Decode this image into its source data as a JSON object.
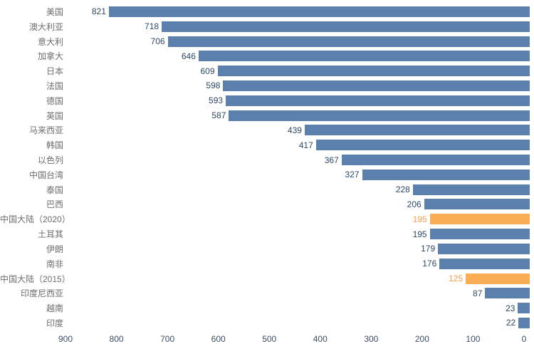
{
  "chart_data": {
    "type": "bar",
    "orientation": "horizontal",
    "title": "",
    "xlabel": "",
    "ylabel": "",
    "categories": [
      "美国",
      "澳大利亚",
      "意大利",
      "加拿大",
      "日本",
      "法国",
      "德国",
      "英国",
      "马来西亚",
      "韩国",
      "以色列",
      "中国台湾",
      "泰国",
      "巴西",
      "中国大陆（2020）",
      "土耳其",
      "伊朗",
      "南非",
      "中国大陆（2015）",
      "印度尼西亚",
      "越南",
      "印度"
    ],
    "values": [
      821,
      718,
      706,
      646,
      609,
      598,
      593,
      587,
      439,
      417,
      367,
      327,
      228,
      206,
      195,
      195,
      179,
      176,
      125,
      87,
      23,
      22
    ],
    "highlight_indices": [
      14,
      18
    ],
    "x_axis": {
      "min": 0,
      "max": 900,
      "reversed": true,
      "ticks": [
        900,
        800,
        700,
        600,
        500,
        400,
        300,
        200,
        100,
        0
      ]
    },
    "legend": null,
    "grid": false,
    "colors": {
      "bar": "#5b80ad",
      "highlight_bar": "#f9ad55",
      "value_label": "#2e4a66",
      "highlight_value_label": "#f5a04a",
      "category_label": "#6e6e6e",
      "axis_label": "#3d4f63",
      "background": "#ffffff"
    }
  }
}
